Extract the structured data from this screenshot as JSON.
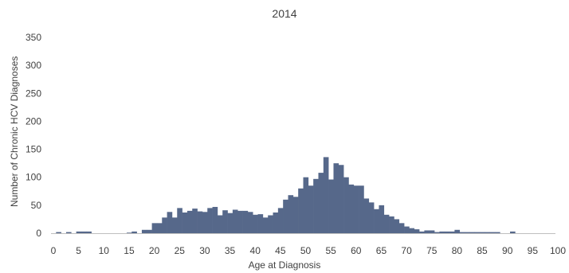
{
  "chart_data": {
    "type": "bar",
    "title": "2014",
    "xlabel": "Age at Diagnosis",
    "ylabel": "Number of Chronic HCV Diagnoses",
    "xlim": [
      0,
      100
    ],
    "ylim": [
      0,
      350
    ],
    "x_ticks": [
      0,
      5,
      10,
      15,
      20,
      25,
      30,
      35,
      40,
      45,
      50,
      55,
      60,
      65,
      70,
      75,
      80,
      85,
      90,
      95,
      100
    ],
    "y_ticks": [
      0,
      50,
      100,
      150,
      200,
      250,
      300,
      350
    ],
    "bar_color": "#56688a",
    "grid": false,
    "legend": "none",
    "x": [
      0,
      1,
      2,
      3,
      4,
      5,
      6,
      7,
      8,
      9,
      10,
      11,
      12,
      13,
      14,
      15,
      16,
      17,
      18,
      19,
      20,
      21,
      22,
      23,
      24,
      25,
      26,
      27,
      28,
      29,
      30,
      31,
      32,
      33,
      34,
      35,
      36,
      37,
      38,
      39,
      40,
      41,
      42,
      43,
      44,
      45,
      46,
      47,
      48,
      49,
      50,
      51,
      52,
      53,
      54,
      55,
      56,
      57,
      58,
      59,
      60,
      61,
      62,
      63,
      64,
      65,
      66,
      67,
      68,
      69,
      70,
      71,
      72,
      73,
      74,
      75,
      76,
      77,
      78,
      79,
      80,
      81,
      82,
      83,
      84,
      85,
      86,
      87,
      88,
      89,
      90,
      91,
      92,
      93,
      94,
      95,
      96,
      97,
      98,
      99
    ],
    "values": [
      0,
      2,
      0,
      2,
      0,
      3,
      3,
      3,
      0,
      0,
      0,
      0,
      0,
      0,
      0,
      1,
      3,
      0,
      6,
      6,
      18,
      18,
      28,
      38,
      28,
      45,
      37,
      40,
      44,
      39,
      38,
      45,
      47,
      32,
      41,
      36,
      42,
      40,
      40,
      38,
      33,
      34,
      28,
      32,
      37,
      45,
      60,
      68,
      65,
      80,
      100,
      85,
      97,
      108,
      136,
      96,
      125,
      122,
      100,
      87,
      85,
      85,
      62,
      55,
      43,
      50,
      33,
      30,
      25,
      18,
      12,
      9,
      7,
      3,
      5,
      5,
      2,
      3,
      3,
      3,
      6,
      2,
      2,
      2,
      2,
      2,
      2,
      2,
      2,
      0,
      0,
      3,
      0,
      0,
      0,
      0,
      0,
      0,
      0,
      0
    ]
  }
}
